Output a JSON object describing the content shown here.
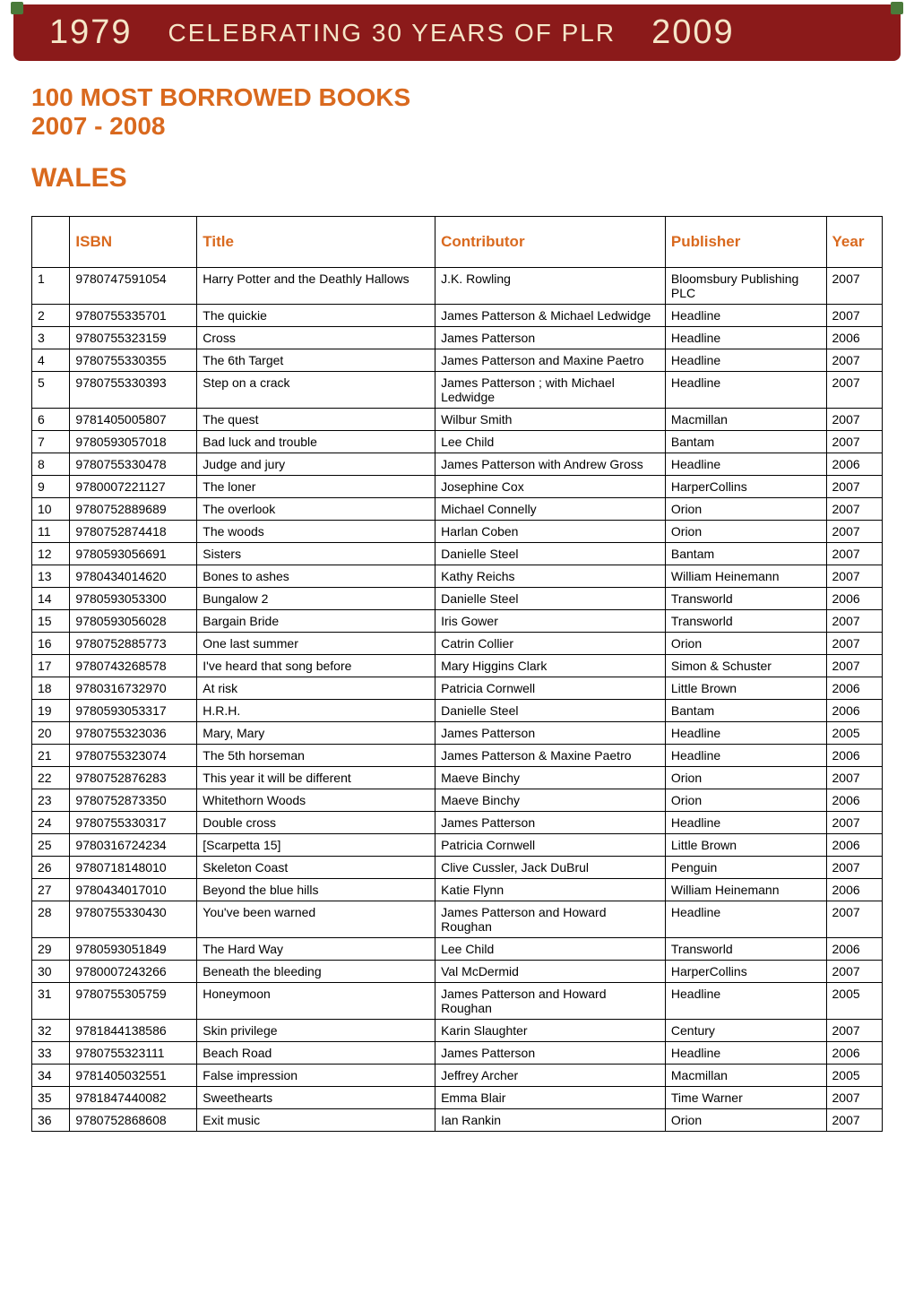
{
  "banner": {
    "year_left": "1979",
    "center": "CELEBRATING 30 YEARS OF PLR",
    "year_right": "2009",
    "bg_color": "#8b1a1a",
    "text_color": "#f5e6c8",
    "accent_color": "#4a7a3a"
  },
  "heading": {
    "line1": "100 MOST BORROWED BOOKS",
    "line2": "2007 - 2008",
    "region": "WALES",
    "color": "#d9691e"
  },
  "table": {
    "headers": {
      "rank": "",
      "isbn": "ISBN",
      "title": "Title",
      "contributor": "Contributor",
      "publisher": "Publisher",
      "year": "Year"
    },
    "header_color": "#d9691e",
    "border_color": "#000000",
    "rows": [
      {
        "rank": "1",
        "isbn": "9780747591054",
        "title": "Harry Potter and the Deathly Hallows",
        "contributor": "J.K. Rowling",
        "publisher": "Bloomsbury Publishing PLC",
        "year": "2007"
      },
      {
        "rank": "2",
        "isbn": "9780755335701",
        "title": "The quickie",
        "contributor": "James Patterson & Michael Ledwidge",
        "publisher": "Headline",
        "year": "2007"
      },
      {
        "rank": "3",
        "isbn": "9780755323159",
        "title": "Cross",
        "contributor": "James Patterson",
        "publisher": "Headline",
        "year": "2006"
      },
      {
        "rank": "4",
        "isbn": "9780755330355",
        "title": "The 6th Target",
        "contributor": "James Patterson and Maxine Paetro",
        "publisher": "Headline",
        "year": "2007"
      },
      {
        "rank": "5",
        "isbn": "9780755330393",
        "title": "Step on a crack",
        "contributor": "James Patterson ; with Michael Ledwidge",
        "publisher": "Headline",
        "year": "2007"
      },
      {
        "rank": "6",
        "isbn": "9781405005807",
        "title": "The quest",
        "contributor": "Wilbur Smith",
        "publisher": "Macmillan",
        "year": "2007"
      },
      {
        "rank": "7",
        "isbn": "9780593057018",
        "title": "Bad luck and trouble",
        "contributor": "Lee Child",
        "publisher": "Bantam",
        "year": "2007"
      },
      {
        "rank": "8",
        "isbn": "9780755330478",
        "title": "Judge and jury",
        "contributor": "James Patterson with Andrew Gross",
        "publisher": "Headline",
        "year": "2006"
      },
      {
        "rank": "9",
        "isbn": "9780007221127",
        "title": "The loner",
        "contributor": "Josephine Cox",
        "publisher": "HarperCollins",
        "year": "2007"
      },
      {
        "rank": "10",
        "isbn": "9780752889689",
        "title": "The overlook",
        "contributor": "Michael Connelly",
        "publisher": "Orion",
        "year": "2007"
      },
      {
        "rank": "11",
        "isbn": "9780752874418",
        "title": "The woods",
        "contributor": "Harlan Coben",
        "publisher": "Orion",
        "year": "2007"
      },
      {
        "rank": "12",
        "isbn": "9780593056691",
        "title": "Sisters",
        "contributor": "Danielle Steel",
        "publisher": "Bantam",
        "year": "2007"
      },
      {
        "rank": "13",
        "isbn": "9780434014620",
        "title": "Bones to ashes",
        "contributor": "Kathy Reichs",
        "publisher": "William Heinemann",
        "year": "2007"
      },
      {
        "rank": "14",
        "isbn": "9780593053300",
        "title": "Bungalow 2",
        "contributor": "Danielle Steel",
        "publisher": "Transworld",
        "year": "2006"
      },
      {
        "rank": "15",
        "isbn": "9780593056028",
        "title": "Bargain Bride",
        "contributor": "Iris Gower",
        "publisher": "Transworld",
        "year": "2007"
      },
      {
        "rank": "16",
        "isbn": "9780752885773",
        "title": "One last summer",
        "contributor": "Catrin Collier",
        "publisher": "Orion",
        "year": "2007"
      },
      {
        "rank": "17",
        "isbn": "9780743268578",
        "title": "I've heard that song before",
        "contributor": "Mary Higgins Clark",
        "publisher": "Simon & Schuster",
        "year": "2007"
      },
      {
        "rank": "18",
        "isbn": "9780316732970",
        "title": "At risk",
        "contributor": "Patricia Cornwell",
        "publisher": "Little Brown",
        "year": "2006"
      },
      {
        "rank": "19",
        "isbn": "9780593053317",
        "title": "H.R.H.",
        "contributor": "Danielle Steel",
        "publisher": "Bantam",
        "year": "2006"
      },
      {
        "rank": "20",
        "isbn": "9780755323036",
        "title": "Mary, Mary",
        "contributor": "James Patterson",
        "publisher": "Headline",
        "year": "2005"
      },
      {
        "rank": "21",
        "isbn": "9780755323074",
        "title": "The 5th horseman",
        "contributor": "James Patterson & Maxine Paetro",
        "publisher": "Headline",
        "year": "2006"
      },
      {
        "rank": "22",
        "isbn": "9780752876283",
        "title": "This year it will be different",
        "contributor": "Maeve Binchy",
        "publisher": "Orion",
        "year": "2007"
      },
      {
        "rank": "23",
        "isbn": "9780752873350",
        "title": "Whitethorn Woods",
        "contributor": "Maeve Binchy",
        "publisher": "Orion",
        "year": "2006"
      },
      {
        "rank": "24",
        "isbn": "9780755330317",
        "title": "Double cross",
        "contributor": "James Patterson",
        "publisher": "Headline",
        "year": "2007"
      },
      {
        "rank": "25",
        "isbn": "9780316724234",
        "title": "[Scarpetta 15]",
        "contributor": "Patricia Cornwell",
        "publisher": "Little Brown",
        "year": "2006"
      },
      {
        "rank": "26",
        "isbn": "9780718148010",
        "title": "Skeleton Coast",
        "contributor": "Clive Cussler, Jack DuBrul",
        "publisher": "Penguin",
        "year": "2007"
      },
      {
        "rank": "27",
        "isbn": "9780434017010",
        "title": "Beyond the blue hills",
        "contributor": "Katie Flynn",
        "publisher": "William Heinemann",
        "year": "2006"
      },
      {
        "rank": "28",
        "isbn": "9780755330430",
        "title": "You've been warned",
        "contributor": "James Patterson and Howard Roughan",
        "publisher": "Headline",
        "year": "2007"
      },
      {
        "rank": "29",
        "isbn": "9780593051849",
        "title": "The Hard Way",
        "contributor": "Lee Child",
        "publisher": "Transworld",
        "year": "2006"
      },
      {
        "rank": "30",
        "isbn": "9780007243266",
        "title": "Beneath the bleeding",
        "contributor": "Val McDermid",
        "publisher": "HarperCollins",
        "year": "2007"
      },
      {
        "rank": "31",
        "isbn": "9780755305759",
        "title": "Honeymoon",
        "contributor": "James Patterson and Howard Roughan",
        "publisher": "Headline",
        "year": "2005"
      },
      {
        "rank": "32",
        "isbn": "9781844138586",
        "title": "Skin privilege",
        "contributor": "Karin Slaughter",
        "publisher": "Century",
        "year": "2007"
      },
      {
        "rank": "33",
        "isbn": "9780755323111",
        "title": "Beach Road",
        "contributor": "James Patterson",
        "publisher": "Headline",
        "year": "2006"
      },
      {
        "rank": "34",
        "isbn": "9781405032551",
        "title": "False impression",
        "contributor": "Jeffrey Archer",
        "publisher": "Macmillan",
        "year": "2005"
      },
      {
        "rank": "35",
        "isbn": "9781847440082",
        "title": "Sweethearts",
        "contributor": "Emma Blair",
        "publisher": "Time Warner",
        "year": "2007"
      },
      {
        "rank": "36",
        "isbn": "9780752868608",
        "title": "Exit music",
        "contributor": "Ian Rankin",
        "publisher": "Orion",
        "year": "2007"
      }
    ]
  }
}
